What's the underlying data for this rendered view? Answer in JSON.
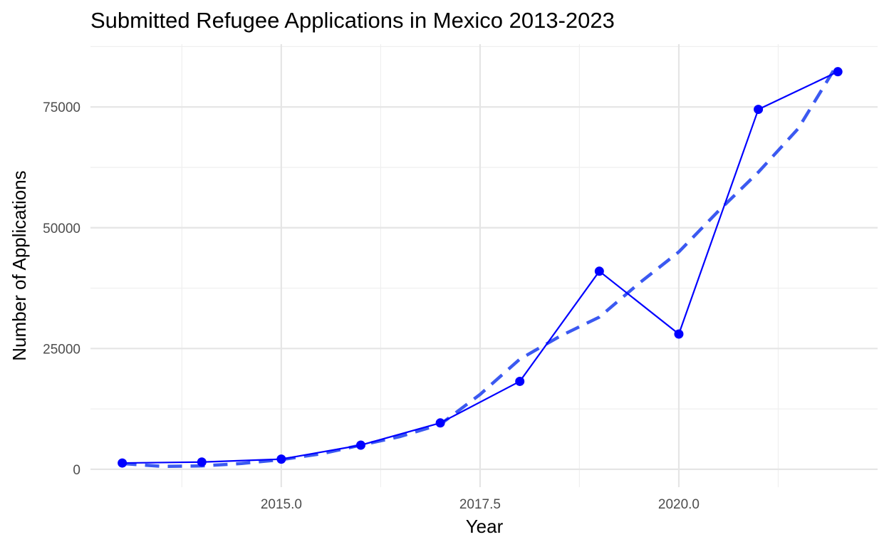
{
  "chart_data": {
    "type": "line",
    "title": "Submitted Refugee Applications in Mexico 2013-2023",
    "xlabel": "Year",
    "ylabel": "Number of Applications",
    "xlim": [
      2012.6,
      2022.5
    ],
    "ylim": [
      -3700,
      88000
    ],
    "x_ticks": [
      2015.0,
      2017.5,
      2020.0
    ],
    "x_tick_labels": [
      "2015.0",
      "2017.5",
      "2020.0"
    ],
    "y_ticks": [
      0,
      25000,
      50000,
      75000
    ],
    "y_tick_labels": [
      "0",
      "25000",
      "50000",
      "75000"
    ],
    "grid": true,
    "legend": "none",
    "series": [
      {
        "style": "solid-line-with-points",
        "color": "#0000ff",
        "x": [
          2013,
          2014,
          2015,
          2016,
          2017,
          2018,
          2019,
          2020,
          2021,
          2022
        ],
        "y": [
          1300,
          1500,
          2100,
          5000,
          9600,
          18200,
          41000,
          28000,
          74500,
          82300
        ]
      },
      {
        "style": "dashed-trend",
        "color": "#3050f0",
        "x": [
          2013,
          2013.5,
          2014,
          2014.5,
          2015,
          2015.5,
          2016,
          2016.5,
          2017,
          2017.5,
          2018,
          2018.5,
          2019,
          2019.5,
          2020,
          2020.5,
          2021,
          2021.5,
          2022
        ],
        "y": [
          1200,
          600,
          700,
          1200,
          2000,
          3200,
          5000,
          6800,
          9300,
          15500,
          22800,
          27500,
          31500,
          38500,
          45000,
          53500,
          61500,
          70500,
          84000
        ]
      }
    ]
  }
}
